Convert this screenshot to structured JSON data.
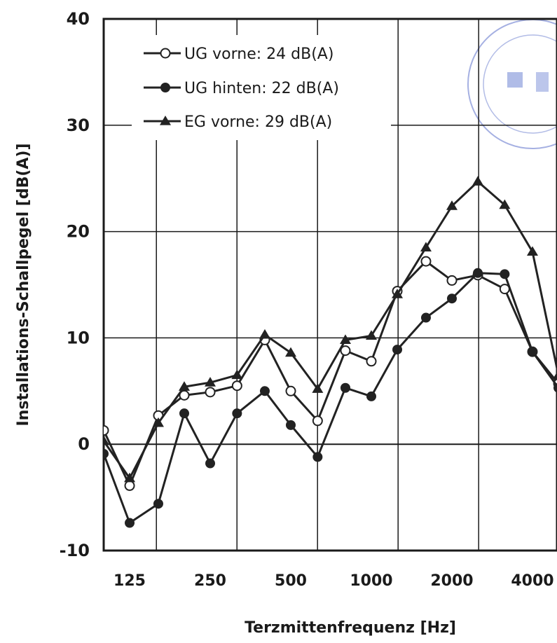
{
  "chart_data": {
    "type": "line",
    "xlabel": "Terzmittenfrequenz [Hz]",
    "ylabel": "Installations-Schallpegel [dB(A)]",
    "ylim": [
      -10,
      40
    ],
    "yticks": [
      40,
      30,
      20,
      10,
      0,
      -10
    ],
    "grid": true,
    "legend_position": "top-left",
    "x": [
      100,
      125,
      160,
      200,
      250,
      315,
      400,
      500,
      630,
      800,
      1000,
      1250,
      1600,
      2000,
      2500,
      3150,
      4000,
      5000
    ],
    "xtick_labels": [
      "125",
      "250",
      "500",
      "1000",
      "2000",
      "4000"
    ],
    "xtick_values": [
      125,
      250,
      500,
      1000,
      2000,
      4000
    ],
    "series": [
      {
        "name": "UG vorne: 24 dB(A)",
        "marker": "open-circle",
        "color": "#222222",
        "values": [
          1.3,
          -3.9,
          2.7,
          4.6,
          4.9,
          5.5,
          9.8,
          5.0,
          2.2,
          8.8,
          7.8,
          14.4,
          17.2,
          15.4,
          15.9,
          14.6,
          8.7,
          5.7
        ]
      },
      {
        "name": "UG hinten: 22 dB(A)",
        "marker": "filled-circle",
        "color": "#222222",
        "values": [
          -0.9,
          -7.4,
          -5.6,
          2.9,
          -1.8,
          2.9,
          5.0,
          1.8,
          -1.2,
          5.3,
          4.5,
          8.9,
          11.9,
          13.7,
          16.1,
          16.0,
          8.7,
          5.3
        ]
      },
      {
        "name": "EG vorne: 29 dB(A)",
        "marker": "filled-triangle",
        "color": "#222222",
        "values": [
          0.3,
          -3.2,
          2.0,
          5.4,
          5.8,
          6.5,
          10.3,
          8.6,
          5.2,
          9.8,
          10.2,
          14.1,
          18.5,
          22.4,
          24.7,
          22.5,
          18.1,
          6.5
        ]
      }
    ]
  }
}
